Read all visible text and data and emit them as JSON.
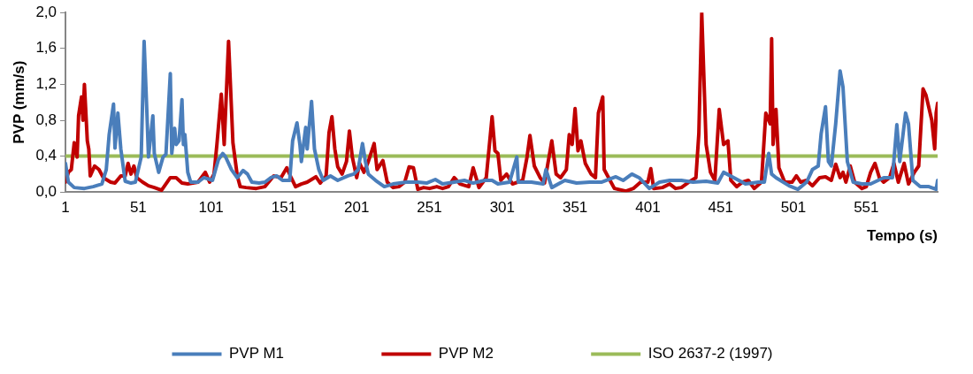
{
  "chart_data": {
    "type": "line",
    "xlabel": "Tempo (s)",
    "ylabel": "PVP (mm/s)",
    "xlim": [
      1,
      600
    ],
    "xticks": [
      1,
      51,
      101,
      151,
      201,
      251,
      301,
      351,
      401,
      451,
      501,
      551
    ],
    "ylim": [
      0,
      2
    ],
    "yticks": [
      {
        "value": 0,
        "label": "0,0"
      },
      {
        "value": 0.4,
        "label": "0,4"
      },
      {
        "value": 0.8,
        "label": "0,8"
      },
      {
        "value": 1.2,
        "label": "1,2"
      },
      {
        "value": 1.6,
        "label": "1,6"
      },
      {
        "value": 2,
        "label": "2,0"
      }
    ],
    "grid": false,
    "legend": "bottom",
    "marker": "none",
    "line_style": "solid",
    "series": [
      {
        "name": "PVP M1",
        "color": "#4a7ebb",
        "x": [
          1,
          3,
          7,
          14,
          20,
          26,
          29,
          31,
          34,
          35,
          37,
          39,
          42,
          46,
          49,
          53,
          55,
          57,
          58,
          61,
          62,
          65,
          68,
          70,
          73,
          74,
          76,
          77,
          79,
          81,
          82,
          83,
          85,
          87,
          92,
          96,
          102,
          106,
          109,
          111,
          115,
          119,
          123,
          126,
          129,
          134,
          138,
          142,
          146,
          150,
          155,
          157,
          160,
          162,
          163,
          166,
          167,
          170,
          172,
          175,
          178,
          183,
          188,
          195,
          199,
          202,
          205,
          207,
          209,
          214,
          220,
          226,
          235,
          243,
          249,
          255,
          260,
          268,
          275,
          281,
          289,
          294,
          298,
          306,
          311,
          312,
          321,
          329,
          331,
          335,
          344,
          352,
          361,
          369,
          379,
          384,
          390,
          395,
          402,
          409,
          416,
          424,
          432,
          441,
          449,
          453,
          468,
          477,
          481,
          484,
          486,
          489,
          498,
          504,
          510,
          514,
          518,
          520,
          523,
          525,
          527,
          530,
          533,
          535,
          538,
          542,
          548,
          554,
          563,
          569,
          572,
          574,
          578,
          580,
          583,
          588,
          594,
          599,
          600
        ],
        "values": [
          0.32,
          0.11,
          0.05,
          0.04,
          0.06,
          0.09,
          0.25,
          0.64,
          0.98,
          0.49,
          0.88,
          0.48,
          0.12,
          0.1,
          0.11,
          0.39,
          1.68,
          0.85,
          0.39,
          0.85,
          0.43,
          0.22,
          0.39,
          0.42,
          1.32,
          0.43,
          0.71,
          0.53,
          0.57,
          1.03,
          0.53,
          0.64,
          0.22,
          0.11,
          0.11,
          0.16,
          0.13,
          0.36,
          0.43,
          0.39,
          0.25,
          0.16,
          0.24,
          0.2,
          0.11,
          0.1,
          0.11,
          0.16,
          0.18,
          0.13,
          0.13,
          0.57,
          0.77,
          0.53,
          0.34,
          0.72,
          0.48,
          1.01,
          0.48,
          0.25,
          0.13,
          0.18,
          0.13,
          0.18,
          0.2,
          0.25,
          0.54,
          0.34,
          0.2,
          0.13,
          0.06,
          0.09,
          0.11,
          0.11,
          0.1,
          0.14,
          0.09,
          0.11,
          0.13,
          0.1,
          0.13,
          0.13,
          0.09,
          0.11,
          0.39,
          0.11,
          0.11,
          0.09,
          0.25,
          0.05,
          0.13,
          0.1,
          0.11,
          0.11,
          0.17,
          0.13,
          0.2,
          0.16,
          0.04,
          0.11,
          0.13,
          0.13,
          0.11,
          0.12,
          0.1,
          0.22,
          0.09,
          0.11,
          0.11,
          0.43,
          0.2,
          0.16,
          0.07,
          0.03,
          0.11,
          0.25,
          0.29,
          0.65,
          0.95,
          0.34,
          0.29,
          0.76,
          1.35,
          1.17,
          0.34,
          0.11,
          0.09,
          0.09,
          0.16,
          0.16,
          0.75,
          0.34,
          0.88,
          0.76,
          0.13,
          0.06,
          0.06,
          0.03,
          0.13
        ]
      },
      {
        "name": "PVP M2",
        "color": "#c00000",
        "x": [
          1,
          3,
          5,
          7,
          9,
          10,
          12,
          13,
          14,
          16,
          17,
          18,
          21,
          24,
          27,
          32,
          35,
          39,
          42,
          44,
          46,
          48,
          50,
          54,
          58,
          62,
          67,
          73,
          77,
          81,
          85,
          92,
          97,
          100,
          103,
          105,
          108,
          110,
          113,
          116,
          119,
          121,
          125,
          132,
          138,
          144,
          149,
          153,
          156,
          159,
          163,
          167,
          173,
          176,
          180,
          182,
          184,
          186,
          188,
          191,
          194,
          196,
          198,
          201,
          203,
          206,
          209,
          213,
          215,
          219,
          222,
          226,
          230,
          234,
          237,
          240,
          243,
          247,
          251,
          256,
          260,
          264,
          268,
          272,
          278,
          281,
          285,
          290,
          294,
          296,
          298,
          300,
          304,
          308,
          315,
          318,
          320,
          323,
          327,
          330,
          335,
          338,
          341,
          345,
          347,
          349,
          351,
          353,
          355,
          358,
          362,
          365,
          367,
          370,
          371,
          375,
          378,
          386,
          391,
          396,
          401,
          403,
          405,
          411,
          416,
          420,
          424,
          429,
          434,
          436,
          438,
          441,
          444,
          447,
          450,
          453,
          456,
          458,
          462,
          466,
          470,
          474,
          479,
          482,
          485,
          486,
          487,
          489,
          491,
          495,
          500,
          503,
          506,
          510,
          514,
          519,
          523,
          527,
          530,
          533,
          535,
          537,
          540,
          543,
          548,
          551,
          554,
          557,
          560,
          563,
          567,
          570,
          573,
          577,
          580,
          584,
          587,
          590,
          592,
          596,
          598,
          599,
          600
        ],
        "values": [
          0.11,
          0.22,
          0.25,
          0.55,
          0.39,
          0.85,
          1.06,
          0.8,
          1.2,
          0.57,
          0.48,
          0.18,
          0.29,
          0.25,
          0.16,
          0.11,
          0.1,
          0.18,
          0.18,
          0.32,
          0.2,
          0.29,
          0.16,
          0.11,
          0.07,
          0.05,
          0.02,
          0.16,
          0.16,
          0.1,
          0.09,
          0.11,
          0.22,
          0.11,
          0.2,
          0.53,
          1.09,
          0.53,
          1.68,
          0.55,
          0.18,
          0.06,
          0.05,
          0.04,
          0.06,
          0.18,
          0.16,
          0.27,
          0.16,
          0.06,
          0.09,
          0.11,
          0.17,
          0.1,
          0.18,
          0.66,
          0.84,
          0.48,
          0.28,
          0.2,
          0.34,
          0.68,
          0.39,
          0.16,
          0.32,
          0.22,
          0.34,
          0.54,
          0.25,
          0.35,
          0.11,
          0.05,
          0.06,
          0.11,
          0.28,
          0.27,
          0.03,
          0.05,
          0.04,
          0.06,
          0.04,
          0.06,
          0.16,
          0.09,
          0.06,
          0.27,
          0.05,
          0.16,
          0.84,
          0.46,
          0.43,
          0.13,
          0.2,
          0.09,
          0.13,
          0.39,
          0.63,
          0.29,
          0.16,
          0.1,
          0.57,
          0.2,
          0.16,
          0.25,
          0.64,
          0.53,
          0.93,
          0.46,
          0.57,
          0.32,
          0.2,
          0.16,
          0.88,
          1.06,
          0.25,
          0.13,
          0.04,
          0.01,
          0.04,
          0.11,
          0.11,
          0.26,
          0.04,
          0.05,
          0.09,
          0.04,
          0.05,
          0.11,
          0.16,
          0.65,
          2.0,
          0.53,
          0.22,
          0.13,
          0.92,
          0.53,
          0.57,
          0.13,
          0.06,
          0.11,
          0.13,
          0.04,
          0.11,
          0.88,
          0.76,
          1.71,
          0.53,
          0.92,
          0.27,
          0.11,
          0.11,
          0.18,
          0.11,
          0.13,
          0.07,
          0.16,
          0.17,
          0.13,
          0.31,
          0.16,
          0.22,
          0.11,
          0.29,
          0.11,
          0.04,
          0.06,
          0.22,
          0.32,
          0.16,
          0.11,
          0.16,
          0.32,
          0.11,
          0.32,
          0.09,
          0.22,
          0.29,
          1.15,
          1.08,
          0.8,
          0.48,
          0.88,
          0.99
        ]
      },
      {
        "name": "ISO 2637-2 (1997)",
        "color": "#9bbb59",
        "x": [
          1,
          600
        ],
        "values": [
          0.4,
          0.4
        ]
      }
    ]
  }
}
